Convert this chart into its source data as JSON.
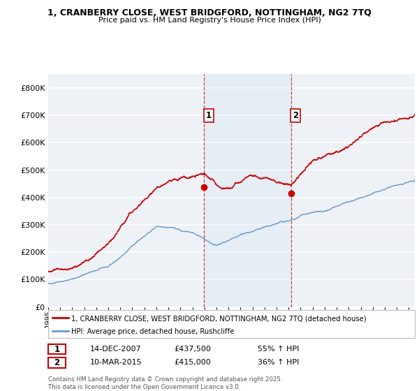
{
  "title1": "1, CRANBERRY CLOSE, WEST BRIDGFORD, NOTTINGHAM, NG2 7TQ",
  "title2": "Price paid vs. HM Land Registry's House Price Index (HPI)",
  "ylim": [
    0,
    850000
  ],
  "yticks": [
    0,
    100000,
    200000,
    300000,
    400000,
    500000,
    600000,
    700000,
    800000
  ],
  "sale1_date": 2007.96,
  "sale1_price": 437500,
  "sale1_label": "1",
  "sale2_date": 2015.19,
  "sale2_price": 415000,
  "sale2_label": "2",
  "line_color_property": "#cc0000",
  "line_color_hpi": "#6699cc",
  "marker_color": "#cc0000",
  "vline_color": "#cc3333",
  "background_color": "#eef2f7",
  "grid_color": "#ffffff",
  "legend1": "1, CRANBERRY CLOSE, WEST BRIDGFORD, NOTTINGHAM, NG2 7TQ (detached house)",
  "legend2": "HPI: Average price, detached house, Rushcliffe",
  "annotation1_date": "14-DEC-2007",
  "annotation1_price": "£437,500",
  "annotation1_hpi": "55% ↑ HPI",
  "annotation2_date": "10-MAR-2015",
  "annotation2_price": "£415,000",
  "annotation2_hpi": "36% ↑ HPI",
  "footer": "Contains HM Land Registry data © Crown copyright and database right 2025.\nThis data is licensed under the Open Government Licence v3.0.",
  "xstart": 1995,
  "xend": 2025.5
}
